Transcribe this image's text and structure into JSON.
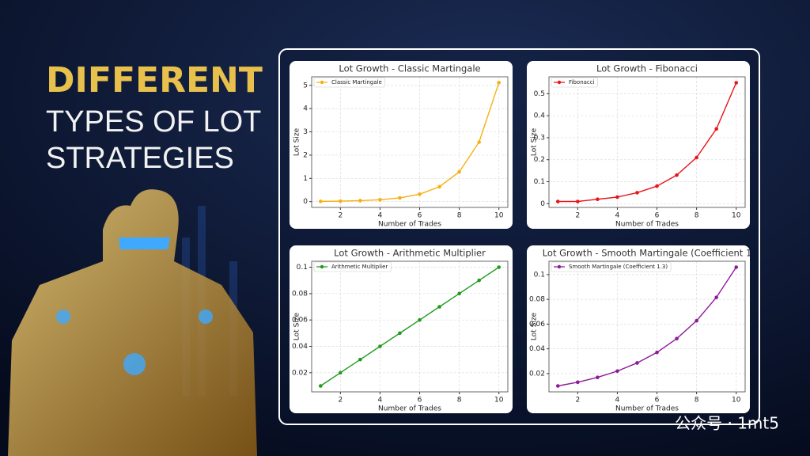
{
  "headline": {
    "highlight": "DIFFERENT",
    "lines": [
      "TYPES OF LOT",
      "STRATEGIES"
    ]
  },
  "watermark": "公众号 · 1mt5",
  "chart_data": [
    {
      "type": "line",
      "title": "Lot Growth - Classic Martingale",
      "x_label": "Number of Trades",
      "y_label": "Lot Size",
      "x": [
        1,
        2,
        3,
        4,
        5,
        6,
        7,
        8,
        9,
        10
      ],
      "series": [
        {
          "name": "Classic Martingale",
          "color": "#f5b014",
          "values": [
            0.01,
            0.02,
            0.04,
            0.08,
            0.16,
            0.32,
            0.64,
            1.28,
            2.56,
            5.12
          ]
        }
      ],
      "xlim": [
        0.55,
        10.45
      ],
      "xticks": [
        2,
        4,
        6,
        8,
        10
      ],
      "ylim": [
        -0.25,
        5.37
      ],
      "yticks": [
        0,
        1,
        2,
        3,
        4,
        5
      ],
      "grid": true,
      "legend": "upper-left"
    },
    {
      "type": "line",
      "title": "Lot Growth - Fibonacci",
      "x_label": "Number of Trades",
      "y_label": "Lot Size",
      "x": [
        1,
        2,
        3,
        4,
        5,
        6,
        7,
        8,
        9,
        10
      ],
      "series": [
        {
          "name": "Fibonacci",
          "color": "#e8151b",
          "values": [
            0.01,
            0.01,
            0.02,
            0.03,
            0.05,
            0.08,
            0.13,
            0.21,
            0.34,
            0.55
          ]
        }
      ],
      "xlim": [
        0.55,
        10.45
      ],
      "xticks": [
        2,
        4,
        6,
        8,
        10
      ],
      "ylim": [
        -0.017,
        0.577
      ],
      "yticks": [
        0,
        0.1,
        0.2,
        0.3,
        0.4,
        0.5
      ],
      "grid": true,
      "legend": "upper-left"
    },
    {
      "type": "line",
      "title": "Lot Growth - Arithmetic Multiplier",
      "x_label": "Number of Trades",
      "y_label": "Lot Size",
      "x": [
        1,
        2,
        3,
        4,
        5,
        6,
        7,
        8,
        9,
        10
      ],
      "series": [
        {
          "name": "Arithmetic Multiplier",
          "color": "#1f9a1f",
          "values": [
            0.01,
            0.02,
            0.03,
            0.04,
            0.05,
            0.06,
            0.07,
            0.08,
            0.09,
            0.1
          ]
        }
      ],
      "xlim": [
        0.55,
        10.45
      ],
      "xticks": [
        2,
        4,
        6,
        8,
        10
      ],
      "ylim": [
        0.0055,
        0.1045
      ],
      "yticks": [
        0.02,
        0.04,
        0.06,
        0.08,
        0.1
      ],
      "grid": true,
      "legend": "upper-left"
    },
    {
      "type": "line",
      "title": "Lot Growth - Smooth Martingale (Coefficient 1",
      "x_label": "Number of Trades",
      "y_label": "Lot Size",
      "x": [
        1,
        2,
        3,
        4,
        5,
        6,
        7,
        8,
        9,
        10
      ],
      "series": [
        {
          "name": "Smooth Martingale (Coefficient 1.3)",
          "color": "#8e1a9a",
          "values": [
            0.01,
            0.013,
            0.0169,
            0.022,
            0.0286,
            0.0371,
            0.0483,
            0.0627,
            0.0816,
            0.106
          ]
        }
      ],
      "xlim": [
        0.55,
        10.45
      ],
      "xticks": [
        2,
        4,
        6,
        8,
        10
      ],
      "ylim": [
        0.0052,
        0.1108
      ],
      "yticks": [
        0.02,
        0.04,
        0.06,
        0.08,
        0.1
      ],
      "grid": true,
      "legend": "upper-left"
    }
  ]
}
